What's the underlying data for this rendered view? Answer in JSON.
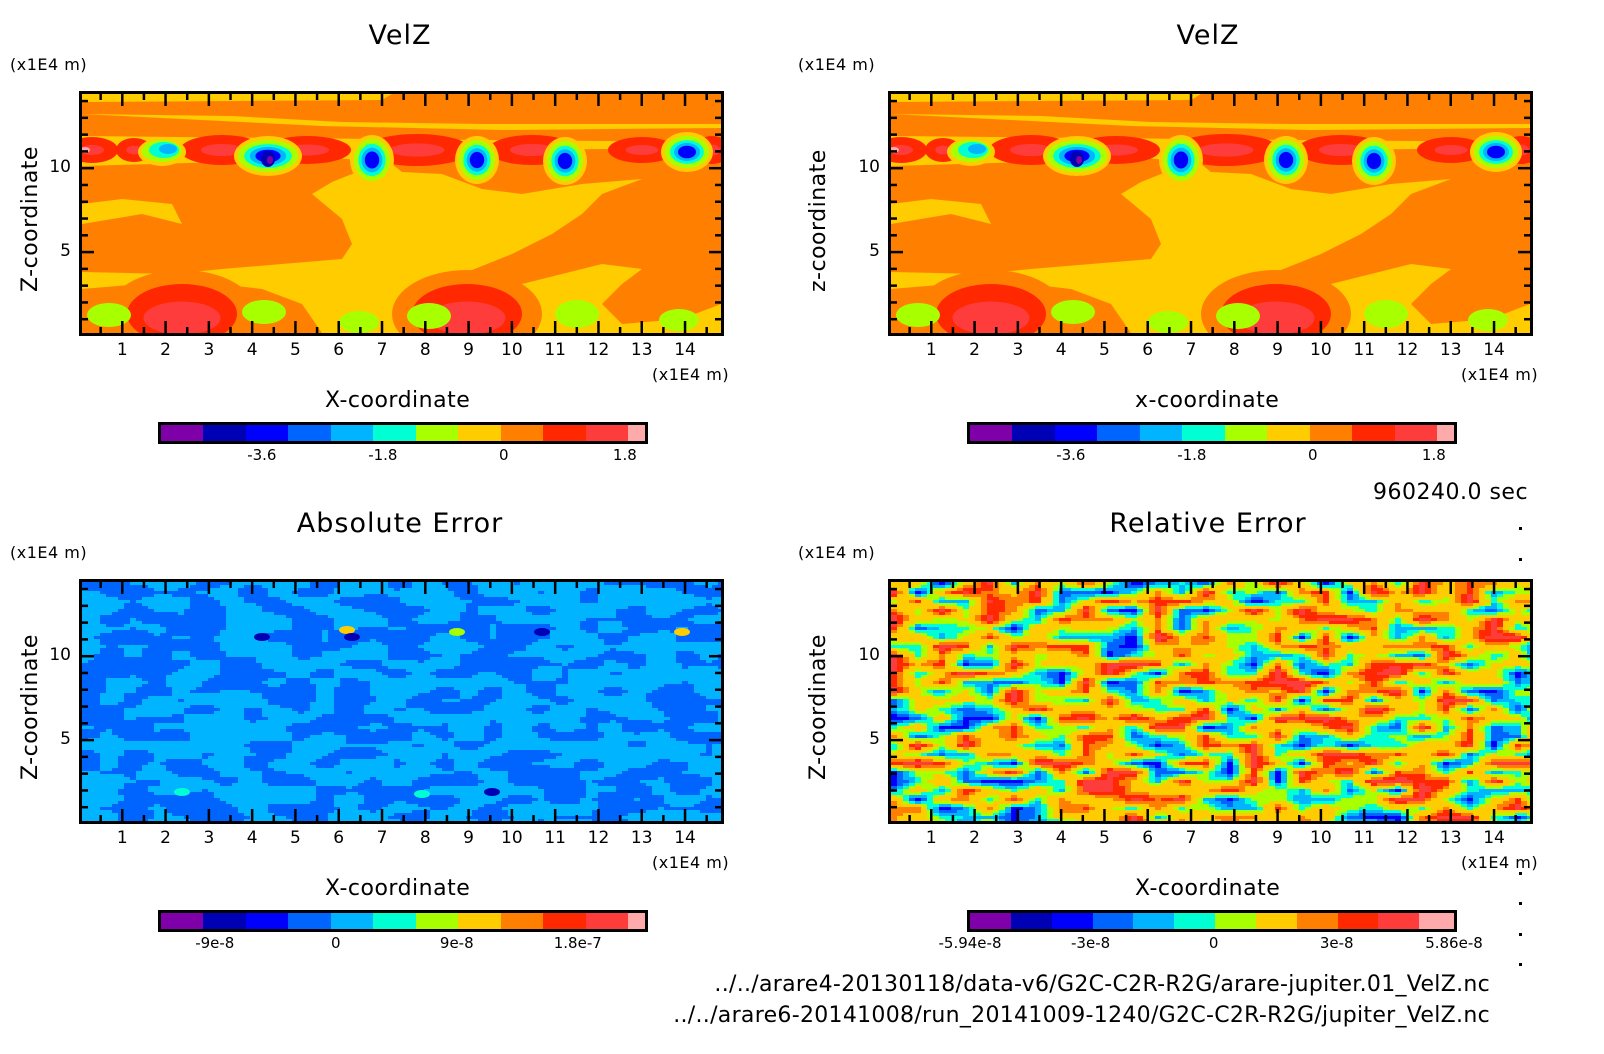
{
  "colormap": [
    "#7f00a8",
    "#0000b4",
    "#0000ff",
    "#0064ff",
    "#00b4ff",
    "#00ffd2",
    "#a8ff00",
    "#ffcc00",
    "#ff8000",
    "#ff2800",
    "#ff3c3c",
    "#ffaaaa"
  ],
  "time_label": "960240.0 sec",
  "file_paths": [
    "../../arare4-20130118/data-v6/G2C-C2R-R2G/arare-jupiter.01_VelZ.nc",
    "../../arare6-20141008/run_20141009-1240/G2C-C2R-R2G/jupiter_VelZ.nc"
  ],
  "chart_data": [
    {
      "type": "heatmap",
      "title": "VelZ",
      "xlabel": "X-coordinate",
      "ylabel": "Z-coordinate",
      "x_unit": "(x1E4 m)",
      "y_unit": "(x1E4 m)",
      "xlim": [
        0,
        14.9
      ],
      "ylim": [
        0,
        14.6
      ],
      "xticks": [
        "1",
        "2",
        "3",
        "4",
        "5",
        "6",
        "7",
        "8",
        "9",
        "10",
        "11",
        "12",
        "13",
        "14"
      ],
      "yticks": [
        "5",
        "10"
      ],
      "colorbar": {
        "ticks": [
          "-3.6",
          "-1.8",
          "0",
          "1.8"
        ],
        "tick_values": [
          -3.6,
          -1.8,
          0,
          1.8
        ],
        "range": [
          -5.1,
          2.1
        ]
      },
      "field": "velz"
    },
    {
      "type": "heatmap",
      "title": "VelZ",
      "xlabel": "x-coordinate",
      "ylabel": "z-coordinate",
      "x_unit": "(x1E4 m)",
      "y_unit": "(x1E4 m)",
      "xlim": [
        0,
        14.9
      ],
      "ylim": [
        0,
        14.6
      ],
      "xticks": [
        "1",
        "2",
        "3",
        "4",
        "5",
        "6",
        "7",
        "8",
        "9",
        "10",
        "11",
        "12",
        "13",
        "14"
      ],
      "yticks": [
        "5",
        "10"
      ],
      "colorbar": {
        "ticks": [
          "-3.6",
          "-1.8",
          "0",
          "1.8"
        ],
        "tick_values": [
          -3.6,
          -1.8,
          0,
          1.8
        ],
        "range": [
          -5.1,
          2.1
        ]
      },
      "field": "velz"
    },
    {
      "type": "heatmap",
      "title": "Absolute Error",
      "xlabel": "X-coordinate",
      "ylabel": "Z-coordinate",
      "x_unit": "(x1E4 m)",
      "y_unit": "(x1E4 m)",
      "xlim": [
        0,
        14.9
      ],
      "ylim": [
        0,
        14.6
      ],
      "xticks": [
        "1",
        "2",
        "3",
        "4",
        "5",
        "6",
        "7",
        "8",
        "9",
        "10",
        "11",
        "12",
        "13",
        "14"
      ],
      "yticks": [
        "5",
        "10"
      ],
      "colorbar": {
        "ticks": [
          "-9e-8",
          "0",
          "9e-8",
          "1.8e-7"
        ],
        "tick_values": [
          -9e-08,
          0,
          9e-08,
          1.8e-07
        ],
        "range": [
          -1.3e-07,
          2.3e-07
        ]
      },
      "field": "abs_error"
    },
    {
      "type": "heatmap",
      "title": "Relative Error",
      "xlabel": "X-coordinate",
      "ylabel": "Z-coordinate",
      "x_unit": "(x1E4 m)",
      "y_unit": "(x1E4 m)",
      "xlim": [
        0,
        14.9
      ],
      "ylim": [
        0,
        14.6
      ],
      "xticks": [
        "1",
        "2",
        "3",
        "4",
        "5",
        "6",
        "7",
        "8",
        "9",
        "10",
        "11",
        "12",
        "13",
        "14"
      ],
      "yticks": [
        "5",
        "10"
      ],
      "colorbar": {
        "ticks": [
          "-5.94e-8",
          "-3e-8",
          "0",
          "3e-8",
          "5.86e-8"
        ],
        "tick_values": [
          -5.94e-08,
          -3e-08,
          0,
          3e-08,
          5.86e-08
        ],
        "range": [
          -5.94e-08,
          5.86e-08
        ]
      },
      "field": "rel_error"
    }
  ]
}
